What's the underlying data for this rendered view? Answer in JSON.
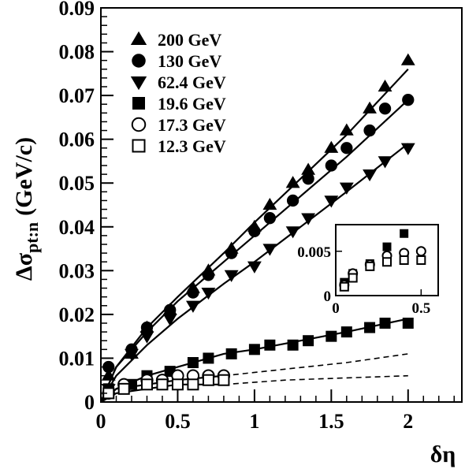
{
  "chart_data": {
    "type": "scatter",
    "xlabel": "δη",
    "ylabel": "Δσ",
    "ylabel_sub": "pt:n",
    "ylabel_unit": "(GeV/c)",
    "xlim": [
      0,
      2.35
    ],
    "ylim": [
      0,
      0.09
    ],
    "xticks": [
      "0",
      "0.5",
      "1",
      "1.5",
      "2"
    ],
    "yticks": [
      "0",
      "0.01",
      "0.02",
      "0.03",
      "0.04",
      "0.05",
      "0.06",
      "0.07",
      "0.08",
      "0.09"
    ],
    "legend_position": "top-left",
    "grid": false,
    "series": [
      {
        "name": "200 GeV",
        "marker": "triangle-up",
        "filled": true,
        "x": [
          0.05,
          0.2,
          0.3,
          0.45,
          0.6,
          0.7,
          0.85,
          1.0,
          1.1,
          1.25,
          1.35,
          1.5,
          1.6,
          1.75,
          1.85,
          2.0
        ],
        "y": [
          0.006,
          0.011,
          0.017,
          0.021,
          0.026,
          0.03,
          0.035,
          0.04,
          0.045,
          0.05,
          0.053,
          0.058,
          0.062,
          0.067,
          0.072,
          0.078
        ]
      },
      {
        "name": "130 GeV",
        "marker": "circle",
        "filled": true,
        "x": [
          0.05,
          0.2,
          0.3,
          0.45,
          0.6,
          0.7,
          0.85,
          1.0,
          1.1,
          1.25,
          1.35,
          1.5,
          1.6,
          1.75,
          1.85,
          2.0
        ],
        "y": [
          0.008,
          0.012,
          0.017,
          0.021,
          0.025,
          0.029,
          0.034,
          0.039,
          0.042,
          0.046,
          0.051,
          0.054,
          0.058,
          0.062,
          0.067,
          0.069
        ]
      },
      {
        "name": "62.4 GeV",
        "marker": "triangle-down",
        "filled": true,
        "x": [
          0.05,
          0.2,
          0.3,
          0.45,
          0.6,
          0.7,
          0.85,
          1.0,
          1.1,
          1.25,
          1.35,
          1.5,
          1.6,
          1.75,
          1.85,
          2.0
        ],
        "y": [
          0.003,
          0.011,
          0.015,
          0.019,
          0.022,
          0.025,
          0.029,
          0.031,
          0.035,
          0.039,
          0.042,
          0.046,
          0.049,
          0.052,
          0.055,
          0.058
        ]
      },
      {
        "name": "19.6 GeV",
        "marker": "square",
        "filled": true,
        "x": [
          0.05,
          0.2,
          0.3,
          0.45,
          0.6,
          0.7,
          0.85,
          1.0,
          1.1,
          1.25,
          1.35,
          1.5,
          1.6,
          1.75,
          1.85,
          2.0
        ],
        "y": [
          0.003,
          0.004,
          0.006,
          0.007,
          0.009,
          0.01,
          0.011,
          0.012,
          0.013,
          0.013,
          0.014,
          0.015,
          0.016,
          0.017,
          0.018,
          0.018
        ]
      },
      {
        "name": "17.3 GeV",
        "marker": "circle",
        "filled": false,
        "x": [
          0.05,
          0.15,
          0.3,
          0.4,
          0.5,
          0.6,
          0.7,
          0.8
        ],
        "y": [
          0.002,
          0.004,
          0.005,
          0.005,
          0.006,
          0.006,
          0.006,
          0.006
        ]
      },
      {
        "name": "12.3 GeV",
        "marker": "square",
        "filled": false,
        "x": [
          0.05,
          0.15,
          0.3,
          0.4,
          0.5,
          0.6,
          0.7,
          0.8
        ],
        "y": [
          0.002,
          0.003,
          0.004,
          0.004,
          0.004,
          0.004,
          0.005,
          0.005
        ]
      }
    ],
    "curves": [
      {
        "style": "solid",
        "x": [
          0,
          0.1,
          0.3,
          0.5,
          0.8,
          1.0,
          1.3,
          1.6,
          2.0
        ],
        "y": [
          0,
          0.008,
          0.017,
          0.024,
          0.034,
          0.041,
          0.051,
          0.061,
          0.076
        ]
      },
      {
        "style": "solid",
        "x": [
          0,
          0.1,
          0.3,
          0.5,
          0.8,
          1.0,
          1.3,
          1.6,
          2.0
        ],
        "y": [
          0,
          0.008,
          0.016,
          0.023,
          0.032,
          0.038,
          0.047,
          0.056,
          0.069
        ]
      },
      {
        "style": "solid",
        "x": [
          0,
          0.1,
          0.3,
          0.5,
          0.8,
          1.0,
          1.3,
          1.6,
          2.0
        ],
        "y": [
          0,
          0.006,
          0.013,
          0.019,
          0.027,
          0.032,
          0.04,
          0.048,
          0.059
        ]
      },
      {
        "style": "solid",
        "x": [
          0,
          0.1,
          0.3,
          0.5,
          0.8,
          1.0,
          1.3,
          1.6,
          2.0
        ],
        "y": [
          0,
          0.003,
          0.006,
          0.008,
          0.011,
          0.012,
          0.014,
          0.016,
          0.019
        ]
      },
      {
        "style": "solid",
        "x": [
          0,
          0.1,
          0.3,
          0.5,
          0.8
        ],
        "y": [
          0,
          0.003,
          0.004,
          0.005,
          0.006
        ]
      },
      {
        "style": "solid",
        "x": [
          0,
          0.1,
          0.3,
          0.5,
          0.8
        ],
        "y": [
          0,
          0.002,
          0.003,
          0.004,
          0.004
        ]
      },
      {
        "style": "dashed",
        "x": [
          0.8,
          1.2,
          1.6,
          2.0
        ],
        "y": [
          0.006,
          0.0075,
          0.009,
          0.011
        ]
      },
      {
        "style": "dashed",
        "x": [
          0.8,
          1.2,
          1.6,
          2.0
        ],
        "y": [
          0.004,
          0.005,
          0.0055,
          0.006
        ]
      }
    ],
    "inset": {
      "xlim": [
        0,
        0.6
      ],
      "ylim": [
        0,
        0.008
      ],
      "xticks": [
        "0",
        "0.5"
      ],
      "yticks": [
        "0",
        "0.005"
      ],
      "series": [
        {
          "name": "19.6 GeV",
          "marker": "square",
          "filled": true,
          "x": [
            0.05,
            0.1,
            0.2,
            0.3,
            0.4
          ],
          "y": [
            0.0015,
            0.0025,
            0.0036,
            0.0055,
            0.007
          ]
        },
        {
          "name": "17.3 GeV",
          "marker": "circle",
          "filled": false,
          "x": [
            0.05,
            0.1,
            0.2,
            0.3,
            0.4,
            0.5
          ],
          "y": [
            0.0012,
            0.0025,
            0.0035,
            0.0045,
            0.0048,
            0.005
          ]
        },
        {
          "name": "12.3 GeV",
          "marker": "square",
          "filled": false,
          "x": [
            0.05,
            0.1,
            0.2,
            0.3,
            0.4,
            0.5
          ],
          "y": [
            0.001,
            0.002,
            0.0033,
            0.0038,
            0.004,
            0.004
          ]
        }
      ]
    }
  }
}
